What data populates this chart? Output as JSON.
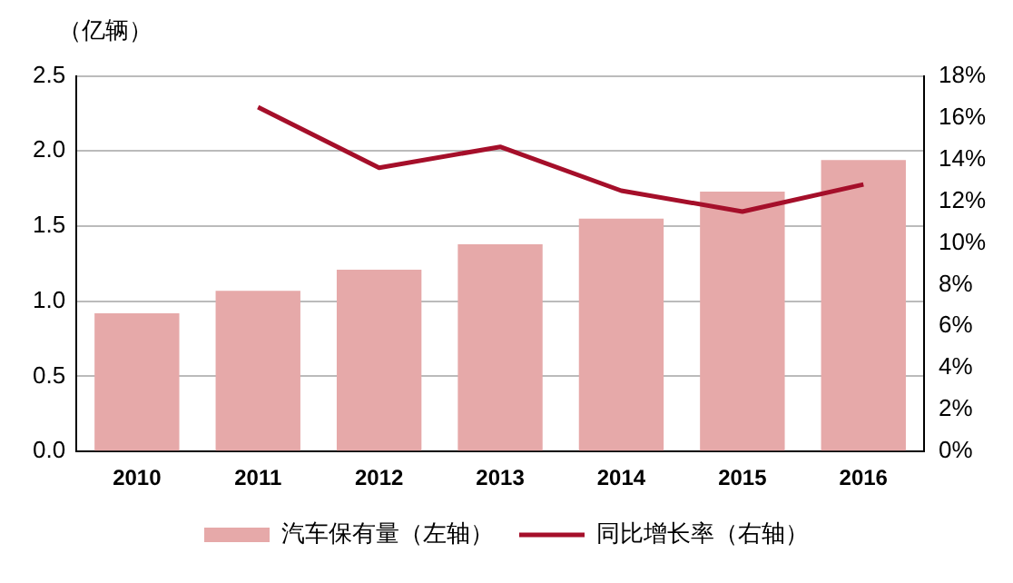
{
  "chart_data": {
    "type": "bar",
    "ylabel": "（亿辆）",
    "categories": [
      "2010",
      "2011",
      "2012",
      "2013",
      "2014",
      "2015",
      "2016"
    ],
    "series": [
      {
        "name": "汽车保有量（左轴）",
        "color": "#e6a9a9",
        "values": [
          0.92,
          1.07,
          1.21,
          1.38,
          1.55,
          1.73,
          1.94
        ]
      },
      {
        "name": "同比增长率（右轴）",
        "type": "line",
        "axis": "y2",
        "color": "#a50f2a",
        "values": [
          null,
          16.5,
          13.6,
          14.6,
          12.5,
          11.5,
          12.8
        ]
      }
    ],
    "ylim": [
      0,
      2.5
    ],
    "yticks": [
      {
        "value": 0,
        "label": "0.0"
      },
      0.5,
      {
        "value": 1,
        "label": "1.0"
      },
      1.5,
      {
        "value": 2,
        "label": "2.0"
      },
      2.5
    ],
    "y2lim": [
      0,
      18
    ],
    "y2ticks": [
      {
        "value": 0,
        "label": "0%"
      },
      {
        "value": 2,
        "label": "2%"
      },
      {
        "value": 4,
        "label": "4%"
      },
      {
        "value": 6,
        "label": "6%"
      },
      {
        "value": 8,
        "label": "8%"
      },
      {
        "value": 10,
        "label": "10%"
      },
      {
        "value": 12,
        "label": "12%"
      },
      {
        "value": 14,
        "label": "14%"
      },
      {
        "value": 16,
        "label": "16%"
      },
      {
        "value": 18,
        "label": "18%"
      }
    ],
    "grid": "y",
    "legend": "bottom",
    "marker": "none",
    "line_style": "solid"
  }
}
